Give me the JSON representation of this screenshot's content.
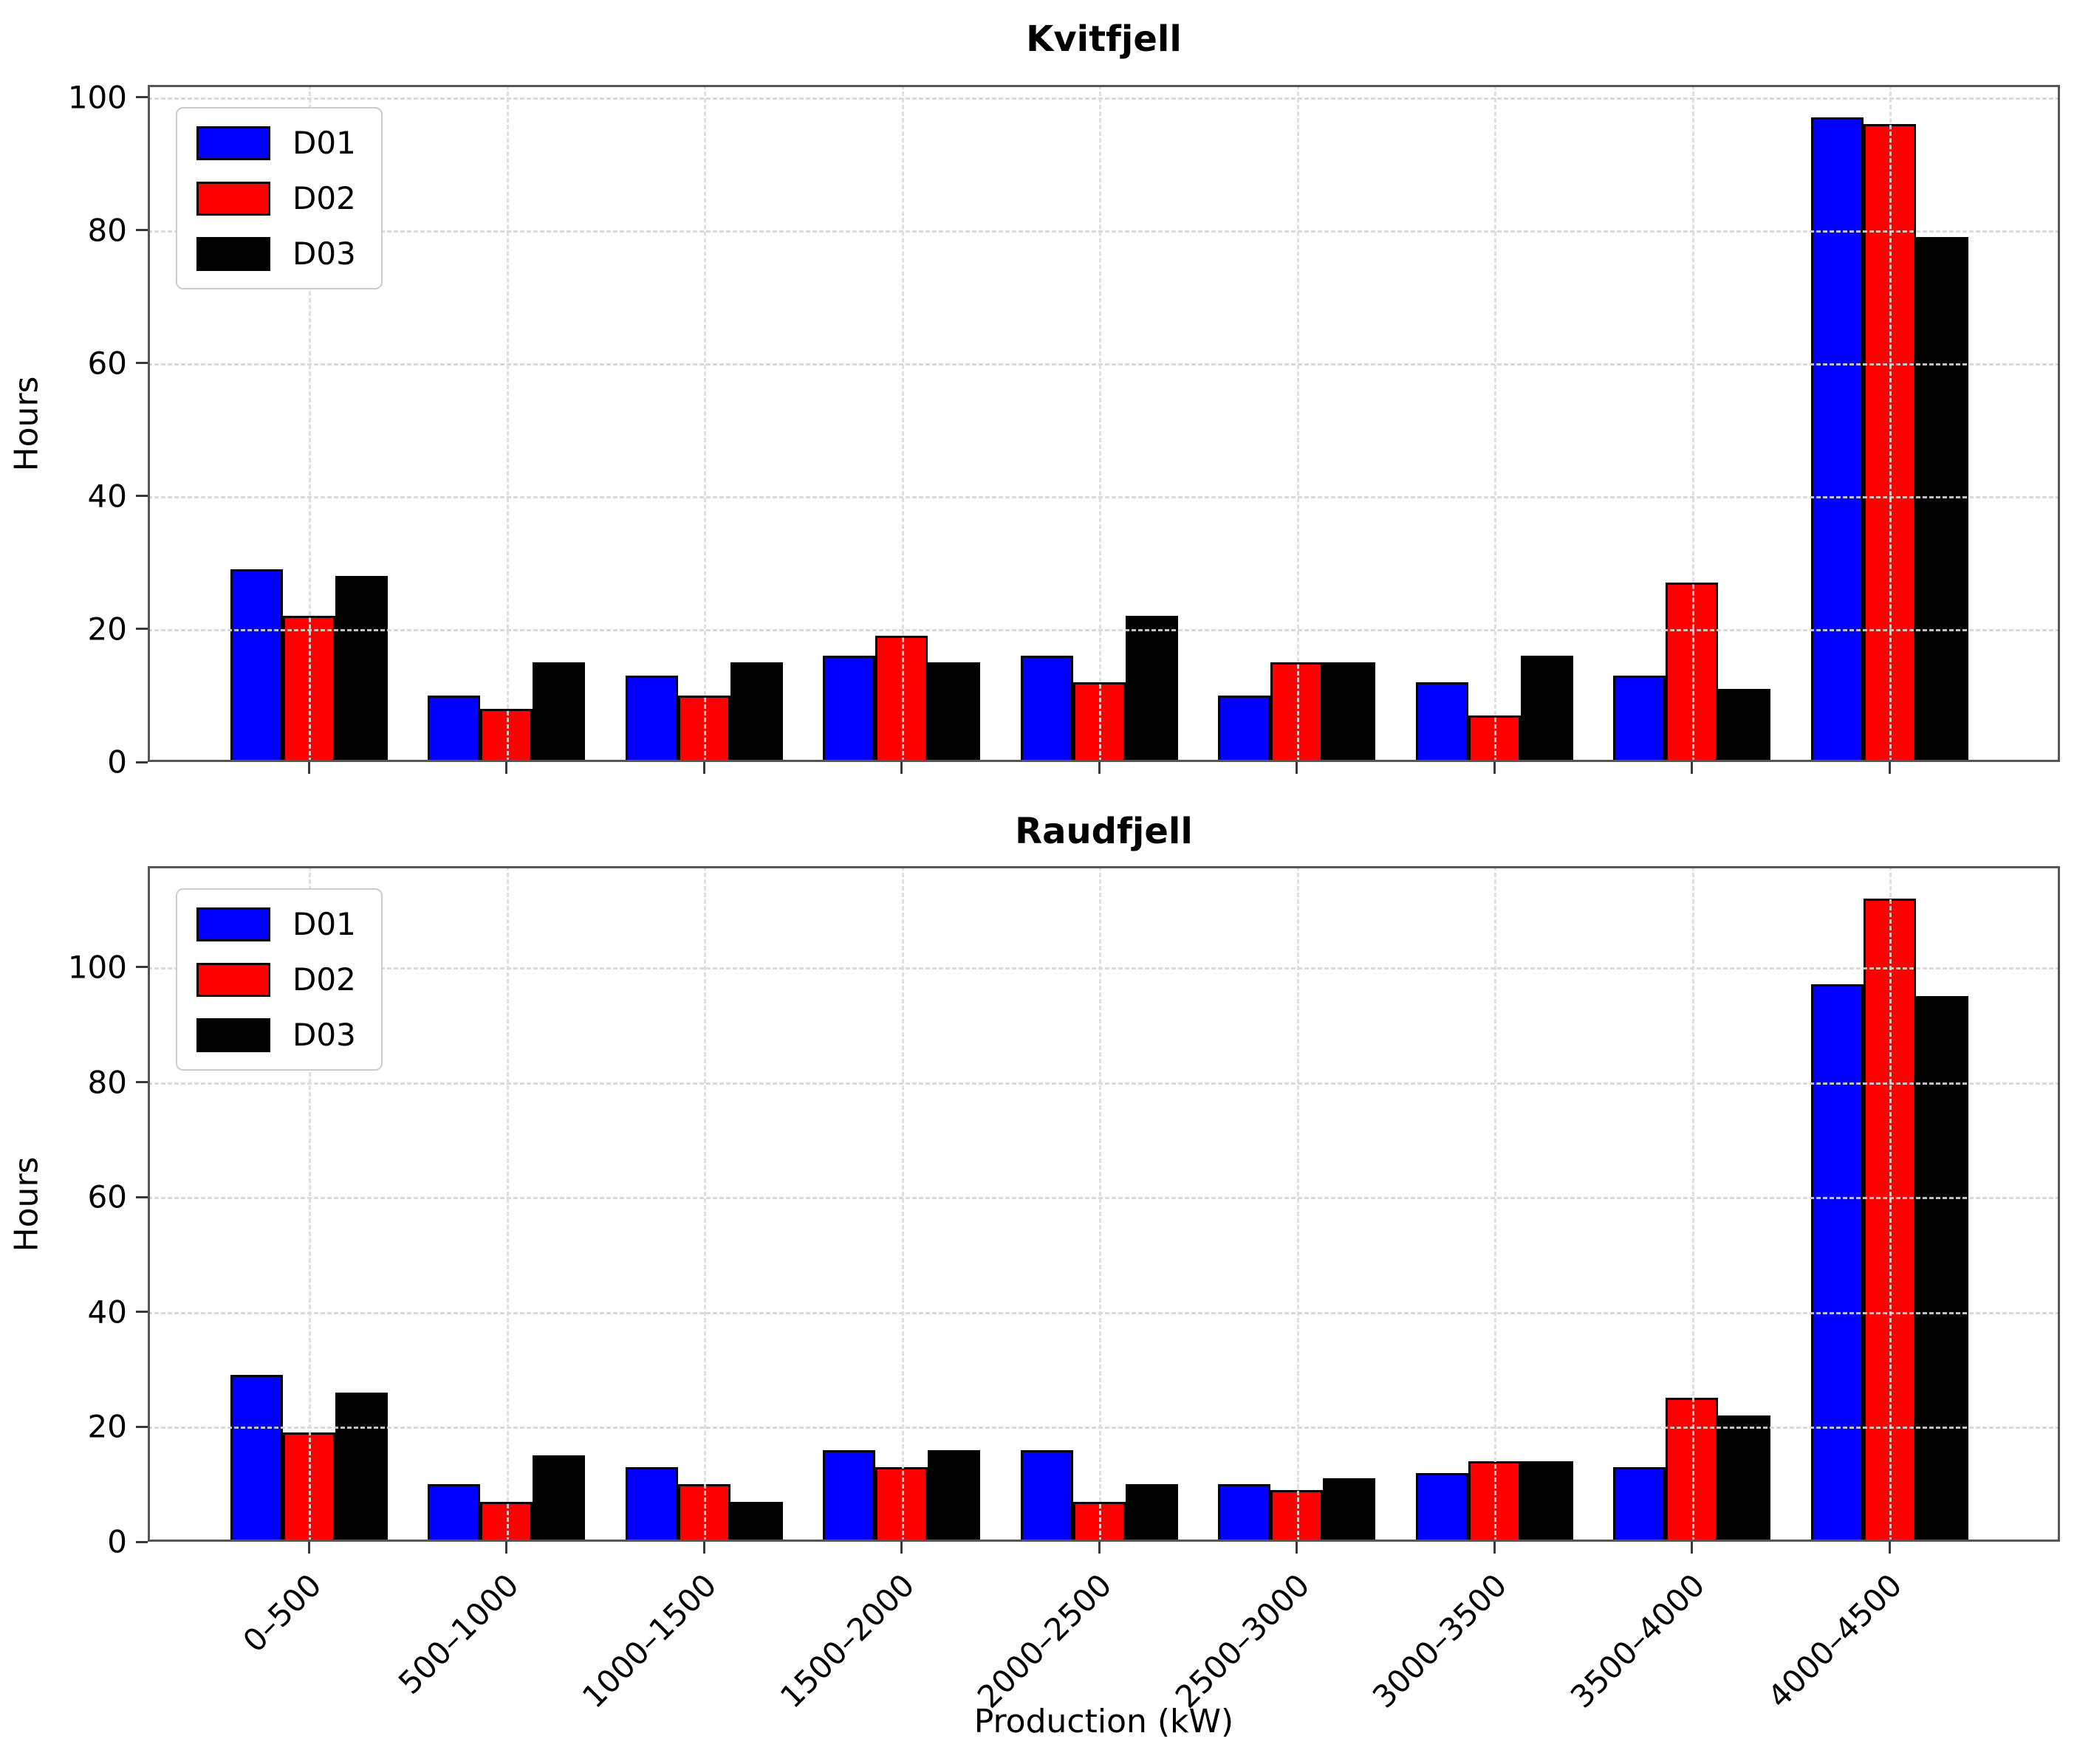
{
  "figure": {
    "background": "#ffffff",
    "ylabel": "Hours",
    "xlabel": "Production (kW)"
  },
  "colors": {
    "D01": "#0000ff",
    "D02": "#ff0000",
    "D03": "#000000",
    "grid": "#d6d6d6",
    "spine": "#565656"
  },
  "chart_data": [
    {
      "type": "bar",
      "title": "Kvitfjell",
      "ylabel": "Hours",
      "xlabel": "",
      "categories": [
        "0–500",
        "500–1000",
        "1000–1500",
        "1500–2000",
        "2000–2500",
        "2500–3000",
        "3000–3500",
        "3500–4000",
        "4000–4500"
      ],
      "series": [
        {
          "name": "D01",
          "color": "#0000ff",
          "values": [
            29,
            10,
            13,
            16,
            16,
            10,
            12,
            13,
            97
          ]
        },
        {
          "name": "D02",
          "color": "#ff0000",
          "values": [
            22,
            8,
            10,
            19,
            12,
            15,
            7,
            27,
            96
          ]
        },
        {
          "name": "D03",
          "color": "#000000",
          "values": [
            28,
            15,
            15,
            15,
            22,
            15,
            16,
            11,
            79
          ]
        }
      ],
      "yticks": [
        0,
        20,
        40,
        60,
        80,
        100
      ],
      "ylim": [
        0,
        101.85
      ],
      "grid": true,
      "legend_position": "upper left",
      "show_x_tick_labels": false
    },
    {
      "type": "bar",
      "title": "Raudfjell",
      "ylabel": "Hours",
      "xlabel": "Production (kW)",
      "categories": [
        "0–500",
        "500–1000",
        "1000–1500",
        "1500–2000",
        "2000–2500",
        "2500–3000",
        "3000–3500",
        "3500–4000",
        "4000–4500"
      ],
      "series": [
        {
          "name": "D01",
          "color": "#0000ff",
          "values": [
            29,
            10,
            13,
            16,
            16,
            10,
            12,
            13,
            97
          ]
        },
        {
          "name": "D02",
          "color": "#ff0000",
          "values": [
            19,
            7,
            10,
            13,
            7,
            9,
            14,
            25,
            112
          ]
        },
        {
          "name": "D03",
          "color": "#000000",
          "values": [
            26,
            15,
            7,
            16,
            10,
            11,
            14,
            22,
            95
          ]
        }
      ],
      "yticks": [
        0,
        20,
        40,
        60,
        80,
        100
      ],
      "ylim": [
        0,
        117.6
      ],
      "grid": true,
      "legend_position": "upper left",
      "show_x_tick_labels": true
    }
  ]
}
